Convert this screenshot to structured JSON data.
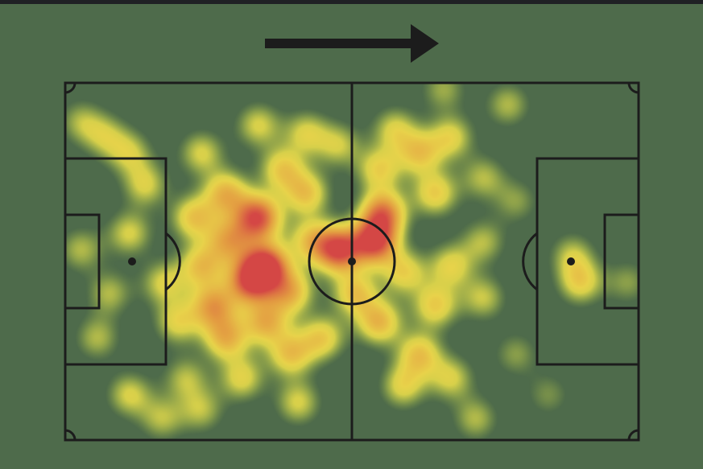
{
  "colors": {
    "background": "#4e6b4b",
    "lines": "#1c1c1c",
    "low": "#c8d44a",
    "mid": "#f5dc4a",
    "high": "#f0a040",
    "max": "#e04444"
  },
  "attack_direction": "right",
  "chart_data": {
    "type": "heatmap",
    "pitch_length": 105,
    "pitch_width": 68,
    "xlim": [
      0,
      105
    ],
    "ylim": [
      0,
      68
    ],
    "points": [
      [
        35.2,
        25.6,
        3
      ],
      [
        36.7,
        34.8,
        3.2
      ],
      [
        33.8,
        37.8,
        2.6
      ],
      [
        50,
        31.7,
        3
      ],
      [
        56.6,
        30.2,
        3
      ],
      [
        58.1,
        24.8,
        2.5
      ],
      [
        27.1,
        42.4,
        2
      ],
      [
        35.3,
        8,
        1.2
      ],
      [
        44.1,
        9.5,
        1.2
      ],
      [
        39.7,
        16.4,
        1.5
      ],
      [
        24.9,
        13.3,
        1.2
      ],
      [
        14.6,
        19.4,
        1.2
      ],
      [
        11.7,
        28.6,
        1.2
      ],
      [
        2.8,
        31.7,
        1
      ],
      [
        5.8,
        48.5,
        1
      ],
      [
        11.7,
        59.3,
        1.2
      ],
      [
        24.9,
        62.3,
        1
      ],
      [
        32.3,
        56.2,
        1.3
      ],
      [
        42.6,
        60.8,
        1.2
      ],
      [
        41.2,
        51.6,
        1.6
      ],
      [
        47,
        48.5,
        1.5
      ],
      [
        57.4,
        45.5,
        1.8
      ],
      [
        64.8,
        51.6,
        1.6
      ],
      [
        70.6,
        56.2,
        1.2
      ],
      [
        75.1,
        63.9,
        1
      ],
      [
        61.8,
        57.7,
        1.3
      ],
      [
        67.7,
        42.4,
        1.5
      ],
      [
        76.5,
        40.9,
        1.1
      ],
      [
        70.6,
        34.8,
        1.3
      ],
      [
        76.5,
        30.2,
        1
      ],
      [
        67.7,
        21,
        1.5
      ],
      [
        70.6,
        10.3,
        1.3
      ],
      [
        64.8,
        13.3,
        1.5
      ],
      [
        57.4,
        16.4,
        1.4
      ],
      [
        60.3,
        8.8,
        1.2
      ],
      [
        81,
        4.1,
        1
      ],
      [
        69.2,
        1.1,
        0.9
      ],
      [
        50,
        11.8,
        1.1
      ],
      [
        29.4,
        21,
        1.8
      ],
      [
        23.5,
        25.6,
        1.6
      ],
      [
        24.9,
        34.8,
        1.6
      ],
      [
        20.5,
        45.5,
        1.3
      ],
      [
        29.4,
        48.5,
        1.8
      ],
      [
        36.7,
        45.5,
        1.8
      ],
      [
        41.2,
        39.7,
        1.8
      ],
      [
        44.1,
        21,
        1.6
      ],
      [
        94.3,
        37.9,
        1.4
      ],
      [
        92.8,
        32.7,
        1
      ],
      [
        103,
        37.9,
        0.8
      ],
      [
        7.2,
        10.1,
        1
      ],
      [
        2.8,
        7.3,
        0.9
      ],
      [
        11.7,
        13.3,
        1.1
      ],
      [
        22,
        56.2,
        1
      ],
      [
        88.4,
        59.3,
        0.7
      ],
      [
        82.5,
        51.6,
        0.8
      ],
      [
        82.5,
        22.5,
        0.8
      ],
      [
        76.5,
        18,
        1
      ],
      [
        17.6,
        63.9,
        1
      ],
      [
        45,
        30,
        1.5
      ],
      [
        30,
        30,
        1.8
      ],
      [
        53,
        40,
        1.6
      ],
      [
        62,
        36,
        1.4
      ],
      [
        18,
        38,
        1.2
      ],
      [
        8,
        40,
        1
      ]
    ]
  }
}
